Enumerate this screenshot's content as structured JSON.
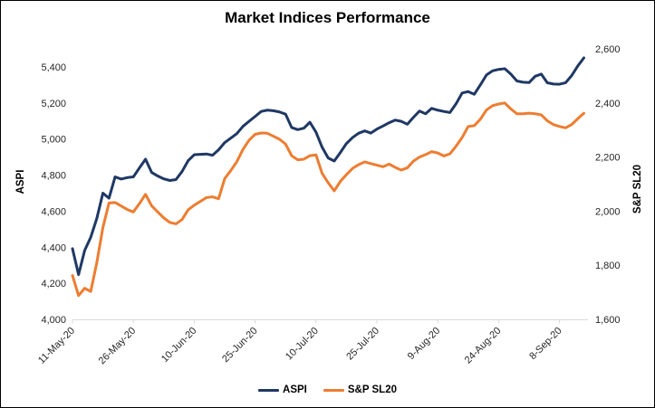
{
  "title": "Market Indices Performance",
  "colors": {
    "aspi_line": "#1f3864",
    "spsl20_line": "#ed7d31",
    "axis_line": "#d9d9d9",
    "tick_text": "#262626",
    "title_text": "#000000",
    "background": "#ffffff"
  },
  "chart_data": {
    "type": "line",
    "title": "Market Indices Performance",
    "grid": false,
    "legend_position": "bottom",
    "x_tick_labels": [
      "11-May-20",
      "26-May-20",
      "10-Jun-20",
      "25-Jun-20",
      "10-Jul-20",
      "25-Jul-20",
      "9-Aug-20",
      "24-Aug-20",
      "8-Sep-20"
    ],
    "x_tick_every": 10,
    "x_label_rotation": -45,
    "left_axis": {
      "title": "ASPI",
      "min": 4000,
      "max": 5500,
      "tick_values": [
        4000,
        4200,
        4400,
        4600,
        4800,
        5000,
        5200,
        5400
      ],
      "tick_labels": [
        "4,000",
        "4,200",
        "4,400",
        "4,600",
        "4,800",
        "5,000",
        "5,200",
        "5,400"
      ]
    },
    "right_axis": {
      "title": "S&P SL20",
      "min": 1600,
      "max": 2600,
      "tick_values": [
        1600,
        1800,
        2000,
        2200,
        2400,
        2600
      ],
      "tick_labels": [
        "1,600",
        "1,800",
        "2,000",
        "2,200",
        "2,400",
        "2,600"
      ]
    },
    "series": [
      {
        "name": "ASPI",
        "axis": "left",
        "color": "#1f3864",
        "values": [
          4392,
          4248,
          4382,
          4455,
          4560,
          4700,
          4672,
          4790,
          4778,
          4786,
          4790,
          4840,
          4888,
          4815,
          4795,
          4779,
          4770,
          4775,
          4820,
          4880,
          4913,
          4915,
          4917,
          4910,
          4940,
          4980,
          5005,
          5030,
          5070,
          5098,
          5125,
          5153,
          5160,
          5157,
          5150,
          5138,
          5064,
          5052,
          5060,
          5093,
          5038,
          4955,
          4895,
          4878,
          4925,
          4975,
          5008,
          5032,
          5045,
          5033,
          5055,
          5072,
          5090,
          5105,
          5098,
          5082,
          5120,
          5155,
          5140,
          5170,
          5160,
          5153,
          5147,
          5195,
          5255,
          5263,
          5248,
          5300,
          5355,
          5378,
          5386,
          5390,
          5360,
          5322,
          5315,
          5313,
          5348,
          5360,
          5312,
          5305,
          5304,
          5312,
          5352,
          5405,
          5450
        ]
      },
      {
        "name": "S&P SL20",
        "axis": "right",
        "color": "#ed7d31",
        "values": [
          1762,
          1688,
          1715,
          1703,
          1810,
          1940,
          2030,
          2032,
          2019,
          2006,
          1997,
          2028,
          2062,
          2020,
          1997,
          1975,
          1958,
          1953,
          1969,
          2005,
          2022,
          2036,
          2050,
          2053,
          2046,
          2120,
          2150,
          2183,
          2228,
          2262,
          2284,
          2289,
          2288,
          2277,
          2266,
          2248,
          2205,
          2190,
          2192,
          2205,
          2208,
          2140,
          2105,
          2075,
          2110,
          2135,
          2158,
          2172,
          2182,
          2176,
          2170,
          2164,
          2174,
          2162,
          2152,
          2160,
          2185,
          2200,
          2209,
          2220,
          2215,
          2204,
          2212,
          2240,
          2272,
          2313,
          2316,
          2340,
          2374,
          2390,
          2396,
          2400,
          2378,
          2360,
          2360,
          2362,
          2360,
          2356,
          2334,
          2320,
          2313,
          2308,
          2320,
          2342,
          2362
        ]
      }
    ]
  }
}
